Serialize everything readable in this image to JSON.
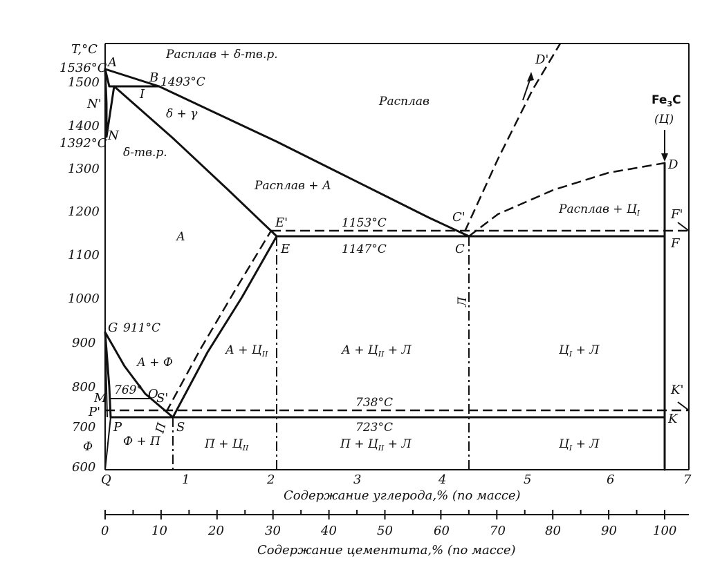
{
  "y_axis": {
    "title": "T,°C",
    "ticks": [
      "600",
      "700",
      "800",
      "900",
      "1000",
      "1100",
      "1200",
      "1300",
      "1400",
      "1500"
    ],
    "special_ticks": [
      "1536°C",
      "1392°C"
    ]
  },
  "x_axis_carbon": {
    "title": "Содержание углерода,% (по массе)",
    "ticks": [
      "1",
      "2",
      "3",
      "4",
      "5",
      "6",
      "7"
    ],
    "origin_label": "Q"
  },
  "x_axis_cementite": {
    "title": "Содержание цементита,% (по массе)",
    "ticks": [
      "0",
      "10",
      "20",
      "30",
      "40",
      "50",
      "60",
      "70",
      "80",
      "90",
      "100"
    ]
  },
  "points": {
    "A": "A",
    "B": "B",
    "N_prime": "N'",
    "N": "N",
    "I": "I",
    "E_prime": "E'",
    "E": "E",
    "C_prime": "C'",
    "C": "C",
    "D_prime": "D'",
    "D": "D",
    "F_prime": "F'",
    "F": "F",
    "G": "G",
    "M": "M",
    "O": "O",
    "P_prime": "P'",
    "P": "P",
    "S_prime": "S'",
    "S": "S",
    "K_prime": "K'",
    "K": "K"
  },
  "temperatures": {
    "B": "1493°C",
    "eutectic_stable": "1153°C",
    "eutectic": "1147°C",
    "G": "911°C",
    "curie": "769°",
    "eutectoid_stable": "738°C",
    "eutectoid": "723°C"
  },
  "regions": {
    "top_left_label": "Расплав + δ-тв.р.",
    "melt": "Расплав",
    "delta_gamma": "δ + γ",
    "delta_solid": "δ-тв.р.",
    "melt_austenite": "Расплав + А",
    "melt_cementite": "Расплав + Ц",
    "melt_cementite_sub": "I",
    "austenite": "А",
    "a_ferrite": "А + Ф",
    "a_cem2": "А + Ц",
    "a_cem2_sub": "II",
    "a_cem2_led": "А + Ц",
    "a_cem2_led_sub": "II",
    "a_cem2_led_tail": " + Л",
    "cem1_led_upper": "Ц",
    "cem1_led_upper_sub": "I",
    "cem1_led_upper_tail": " + Л",
    "ferrite": "Ф",
    "ferrite_pearlite": "Ф + П",
    "pearlite_cem2": "П + Ц",
    "pearlite_cem2_sub": "II",
    "pearlite_cem2_led": "П + Ц",
    "pearlite_cem2_led_sub": "II",
    "pearlite_cem2_led_tail": " + Л",
    "cem1_led_lower": "Ц",
    "cem1_led_lower_sub": "I",
    "cem1_led_lower_tail": " + Л",
    "pearlite_line": "П",
    "ledeburite_line": "Л"
  },
  "cementite_label": {
    "formula_main": "Fe",
    "formula_sub": "3",
    "formula_tail": "C",
    "symbol": "(Ц)"
  }
}
